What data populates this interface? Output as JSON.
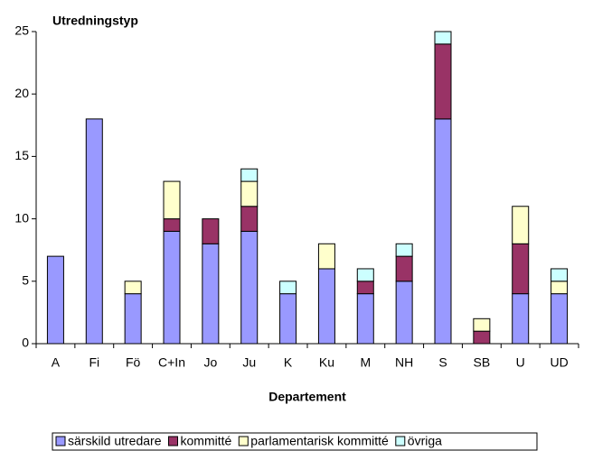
{
  "chart_data": {
    "type": "stacked_bar",
    "title": "Utredningstyp",
    "x_label": "Departement",
    "categories": [
      "A",
      "Fi",
      "Fö",
      "C+In",
      "Jo",
      "Ju",
      "K",
      "Ku",
      "M",
      "NH",
      "S",
      "SB",
      "U",
      "UD"
    ],
    "series": [
      {
        "name": "särskild utredare",
        "color": "#9999ff",
        "values": [
          7,
          18,
          4,
          9,
          8,
          9,
          4,
          6,
          4,
          5,
          18,
          0,
          4,
          4
        ]
      },
      {
        "name": "kommitté",
        "color": "#993366",
        "values": [
          0,
          0,
          0,
          1,
          2,
          2,
          0,
          0,
          1,
          2,
          6,
          1,
          4,
          0
        ]
      },
      {
        "name": "parlamentarisk kommitté",
        "color": "#ffffcc",
        "values": [
          0,
          0,
          1,
          3,
          0,
          2,
          0,
          2,
          0,
          0,
          0,
          1,
          3,
          1
        ]
      },
      {
        "name": "övriga",
        "color": "#ccffff",
        "values": [
          0,
          0,
          0,
          0,
          0,
          1,
          1,
          0,
          1,
          1,
          1,
          0,
          0,
          1
        ]
      }
    ],
    "ylim": [
      0,
      25
    ],
    "yticks": [
      0,
      5,
      10,
      15,
      20,
      25
    ],
    "grid": false,
    "legend": "bottom"
  }
}
